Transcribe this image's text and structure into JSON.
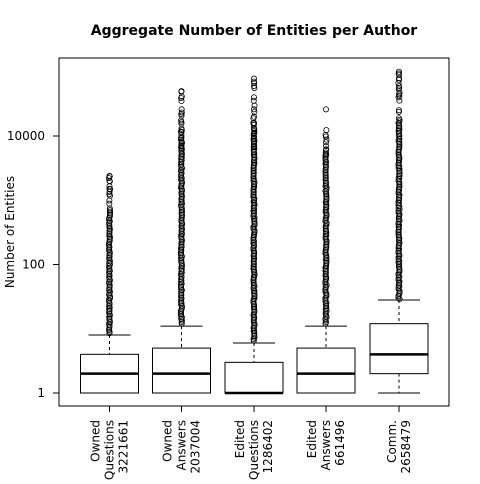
{
  "chart_data": {
    "type": "boxplot",
    "title": "Aggregate Number of Entities per Author",
    "ylabel": "Number of Entities",
    "xlabel": "",
    "yscale": "log10",
    "ylim": [
      0.65,
      140000
    ],
    "yticks": [
      {
        "value": 1,
        "label": "1"
      },
      {
        "value": 100,
        "label": "100"
      },
      {
        "value": 10000,
        "label": "10000"
      }
    ],
    "categories": [
      {
        "lines": [
          "Owned",
          "Questions",
          "3221661"
        ]
      },
      {
        "lines": [
          "Owned",
          "Answers",
          "2037004"
        ]
      },
      {
        "lines": [
          "Edited",
          "Questions",
          "1286402"
        ]
      },
      {
        "lines": [
          "Edited",
          "Answers",
          "661496"
        ]
      },
      {
        "lines": [
          "Comm.",
          "2658479"
        ]
      }
    ],
    "boxes": [
      {
        "whisker_low": 1,
        "q1": 1,
        "median": 2,
        "q3": 4,
        "whisker_high": 8,
        "outlier_min": 8.5,
        "outlier_max": 2400,
        "sparse_outliers": [
          1350,
          1500,
          1650,
          2000,
          2400
        ]
      },
      {
        "whisker_low": 1,
        "q1": 1,
        "median": 2,
        "q3": 5,
        "whisker_high": 11,
        "outlier_min": 12,
        "outlier_max": 50000,
        "sparse_outliers": [
          6500,
          7000,
          8000,
          9500,
          11500,
          13000,
          35000,
          50000
        ]
      },
      {
        "whisker_low": 1,
        "q1": 1,
        "median": 1,
        "q3": 3,
        "whisker_high": 6,
        "outlier_min": 6.5,
        "outlier_max": 78000,
        "sparse_outliers": [
          7000,
          8000,
          9500,
          11000,
          13000,
          16000,
          20000,
          26000,
          40000,
          60000,
          78000
        ]
      },
      {
        "whisker_low": 1,
        "q1": 1,
        "median": 2,
        "q3": 5,
        "whisker_high": 11,
        "outlier_min": 12,
        "outlier_max": 26000,
        "sparse_outliers": [
          5000,
          6000,
          7000,
          8000,
          26000
        ]
      },
      {
        "whisker_low": 1,
        "q1": 2,
        "median": 4,
        "q3": 12,
        "whisker_high": 28,
        "outlier_min": 29,
        "outlier_max": 100000,
        "sparse_outliers": [
          60000,
          75000,
          90000,
          100000
        ]
      }
    ],
    "grid": false,
    "legend": "none"
  }
}
